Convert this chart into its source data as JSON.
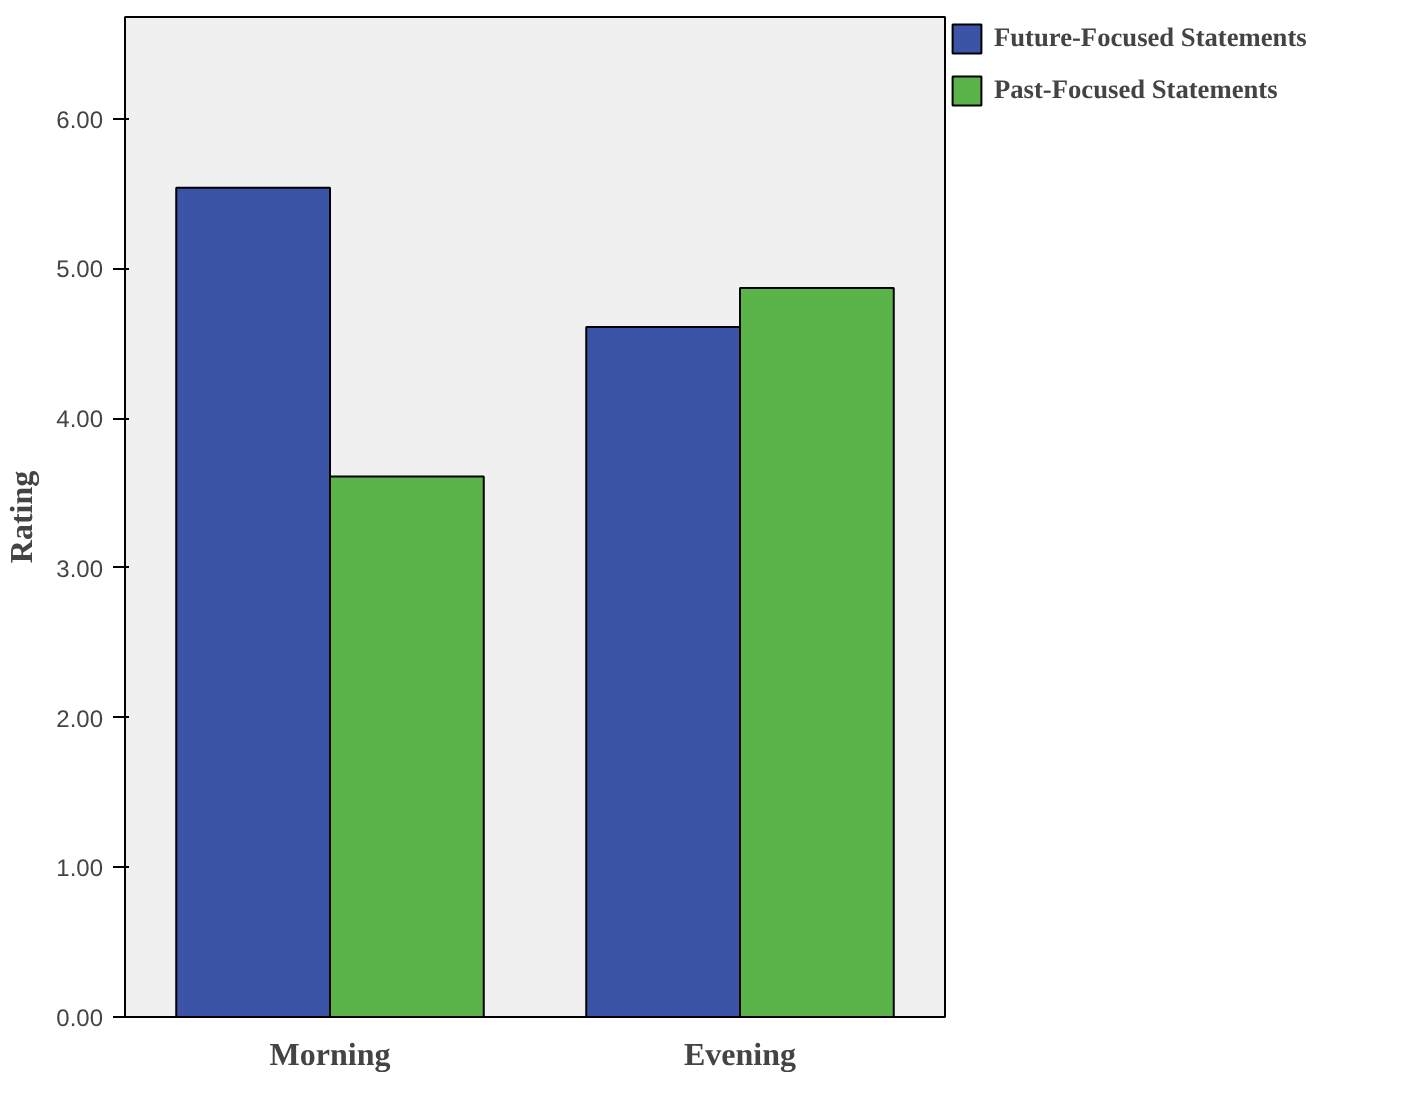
{
  "chart_data": {
    "type": "bar",
    "ylabel": "Rating",
    "categories": [
      "Morning",
      "Evening"
    ],
    "series": [
      {
        "name": "Future-Focused Statements",
        "color": "#3c54a8",
        "values": [
          5.54,
          4.61
        ]
      },
      {
        "name": "Past-Focused Statements",
        "color": "#5bb44a",
        "values": [
          3.61,
          4.87
        ]
      }
    ],
    "ylim": [
      0,
      6.68
    ],
    "yticks": [
      {
        "value": 0,
        "label": "0.00"
      },
      {
        "value": 1,
        "label": "1.00"
      },
      {
        "value": 2,
        "label": "2.00"
      },
      {
        "value": 3,
        "label": "3.00"
      },
      {
        "value": 4,
        "label": "4.00"
      },
      {
        "value": 5,
        "label": "5.00"
      },
      {
        "value": 6,
        "label": "6.00"
      }
    ],
    "grid": false,
    "legend": "top right"
  }
}
